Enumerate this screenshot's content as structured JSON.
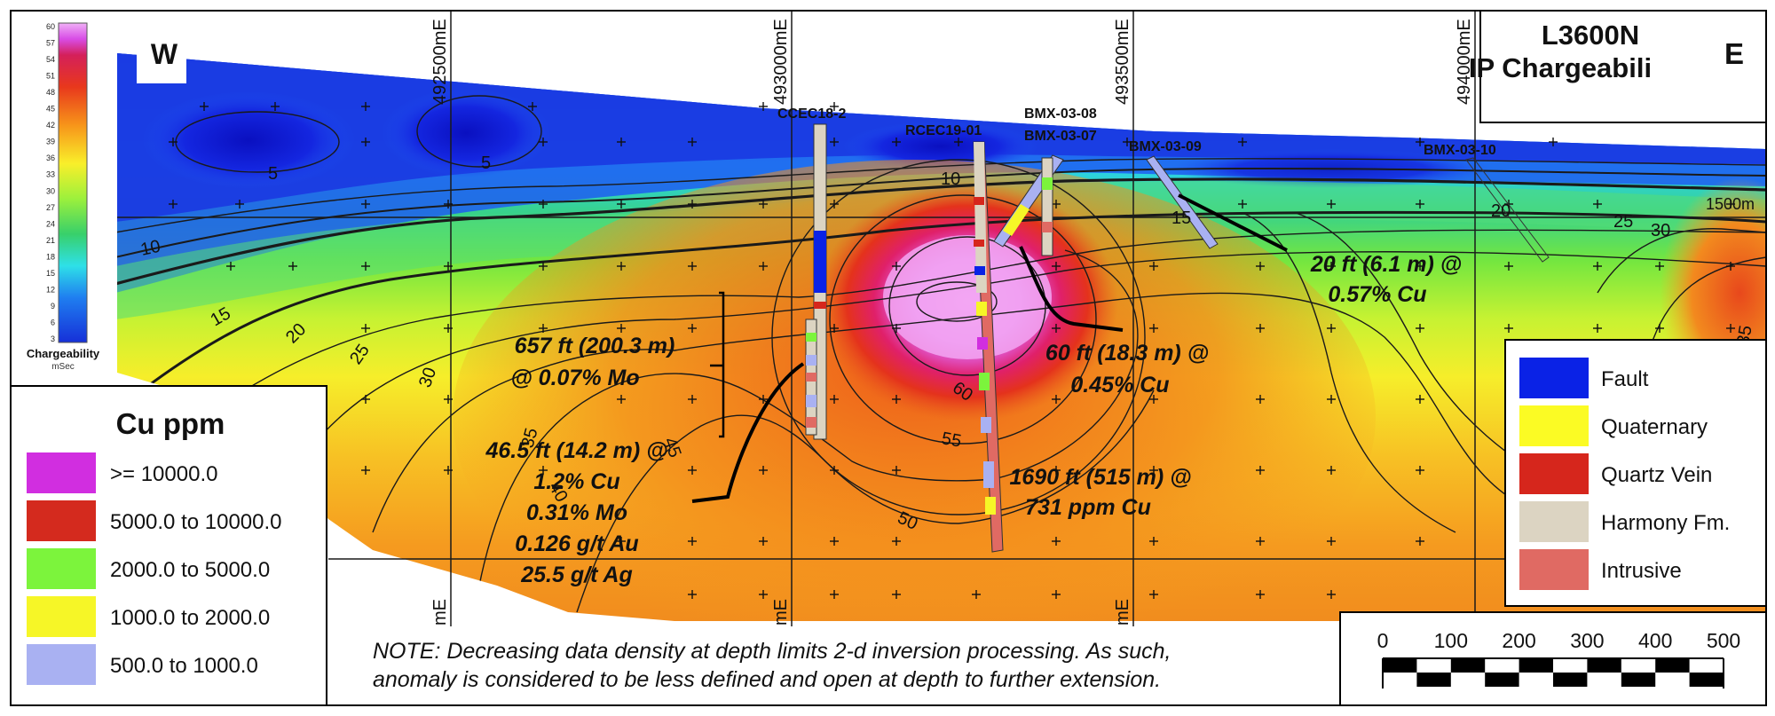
{
  "section": {
    "line_name": "L3600N",
    "title": "IP Chargeabili",
    "west_label": "W",
    "east_label": "E",
    "elevation_label": "1500m"
  },
  "eastings": [
    "492500mE",
    "493000mE",
    "493500mE",
    "494000mE"
  ],
  "eastings_bottom": [
    "mE",
    "mE",
    "mE"
  ],
  "chargeability_legend": {
    "title": "Chargeability",
    "unit": "mSec",
    "ticks": [
      "60",
      "57",
      "54",
      "51",
      "48",
      "45",
      "42",
      "39",
      "36",
      "33",
      "30",
      "27",
      "24",
      "21",
      "18",
      "15",
      "12",
      "9",
      "6",
      "3"
    ]
  },
  "contour_labels": [
    "10",
    "15",
    "20",
    "25",
    "30",
    "35",
    "40",
    "45",
    "50",
    "55",
    "60",
    "5",
    "5",
    "10",
    "15",
    "20",
    "25",
    "30",
    "35"
  ],
  "drillholes": [
    "CCEC18-2",
    "RCEC19-01",
    "BMX-03-08",
    "BMX-03-07",
    "BMX-03-09",
    "BMX-03-10"
  ],
  "intercepts": {
    "mo_intercept": [
      "657 ft (200.3 m)",
      "@ 0.07% Mo"
    ],
    "multi_element": [
      "46.5 ft (14.2 m) @",
      "1.2% Cu",
      "0.31% Mo",
      "0.126 g/t Au",
      "25.5 g/t Ag"
    ],
    "cu_60ft": [
      "60 ft (18.3 m) @",
      "0.45% Cu"
    ],
    "cu_1690ft": [
      "1690 ft (515 m) @",
      "731 ppm Cu"
    ],
    "cu_20ft": [
      "20 ft (6.1 m) @",
      "0.57% Cu"
    ]
  },
  "cu_legend": {
    "title": "Cu ppm",
    "items": [
      {
        "label": ">= 10000.0",
        "color": "#d12ee0"
      },
      {
        "label": "5000.0 to 10000.0",
        "color": "#d42a1e"
      },
      {
        "label": "2000.0 to 5000.0",
        "color": "#7cf43c"
      },
      {
        "label": "1000.0 to 2000.0",
        "color": "#f6f627"
      },
      {
        "label": "500.0 to 1000.0",
        "color": "#a9b1f2"
      }
    ]
  },
  "lithology_legend": {
    "items": [
      {
        "label": "Fault",
        "color": "#0a22e6"
      },
      {
        "label": "Quaternary",
        "color": "#fbfb24"
      },
      {
        "label": "Quartz Vein",
        "color": "#d6261c"
      },
      {
        "label": "Harmony Fm.",
        "color": "#dcd4c2"
      },
      {
        "label": "Intrusive",
        "color": "#e06a63"
      }
    ]
  },
  "note": {
    "line1": "NOTE:  Decreasing data density at depth limits 2-d inversion processing.  As such,",
    "line2": "anomaly is considered to be less defined and open at depth to further extension."
  },
  "scale_bar": {
    "labels": [
      "0",
      "100",
      "200",
      "300",
      "400",
      "500"
    ]
  }
}
